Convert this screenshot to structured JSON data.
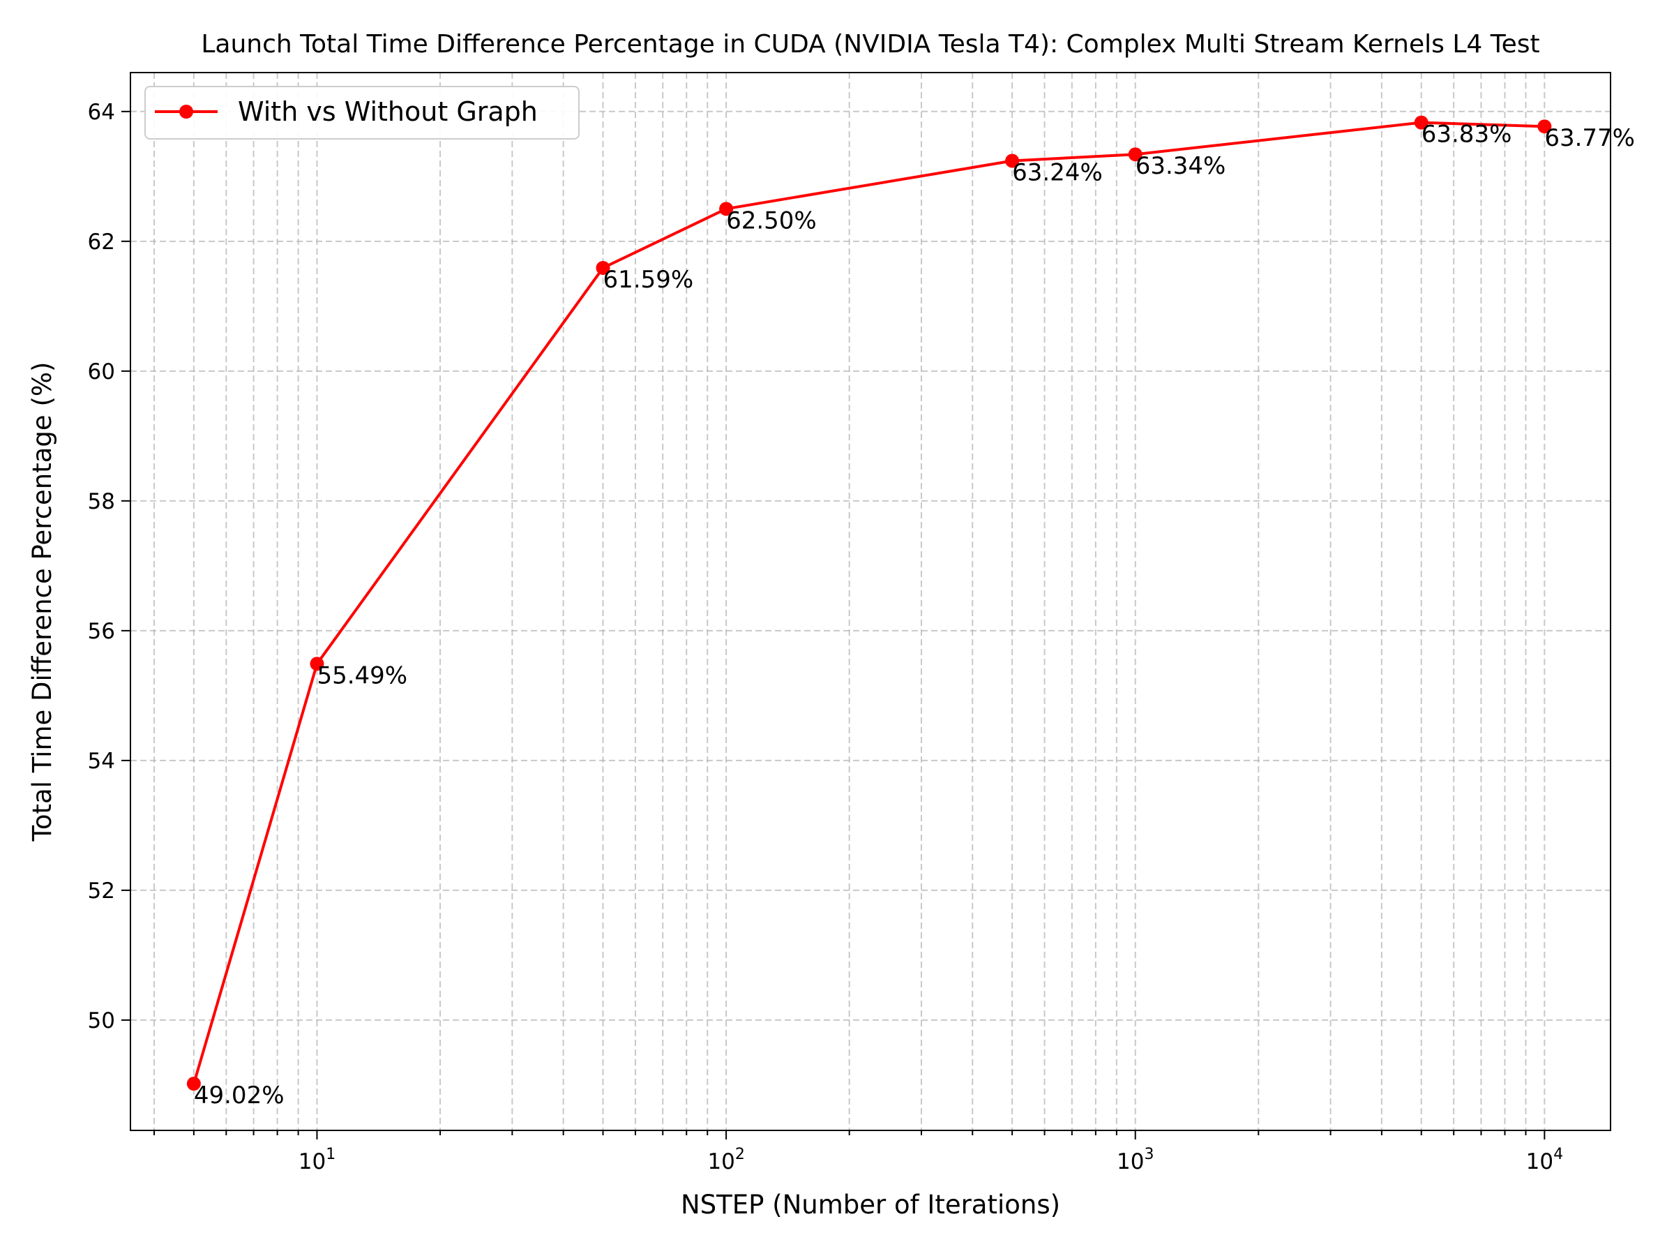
{
  "chart_data": {
    "type": "line",
    "title": "Launch Total Time Difference Percentage in CUDA (NVIDIA Tesla T4): Complex Multi Stream Kernels L4 Test",
    "xlabel": "NSTEP (Number of Iterations)",
    "ylabel": "Total Time Difference Percentage (%)",
    "x_scale": "log",
    "xlim": [
      3.5,
      14500
    ],
    "ylim": [
      48.3,
      64.6
    ],
    "grid": true,
    "legend_position": "top-left",
    "x_ticks": [
      {
        "value": 10,
        "base": "10",
        "exp": "1"
      },
      {
        "value": 100,
        "base": "10",
        "exp": "2"
      },
      {
        "value": 1000,
        "base": "10",
        "exp": "3"
      },
      {
        "value": 10000,
        "base": "10",
        "exp": "4"
      }
    ],
    "y_ticks": [
      {
        "value": 50,
        "label": "50"
      },
      {
        "value": 52,
        "label": "52"
      },
      {
        "value": 54,
        "label": "54"
      },
      {
        "value": 56,
        "label": "56"
      },
      {
        "value": 58,
        "label": "58"
      },
      {
        "value": 60,
        "label": "60"
      },
      {
        "value": 62,
        "label": "62"
      },
      {
        "value": 64,
        "label": "64"
      }
    ],
    "series": [
      {
        "name": "With vs Without Graph",
        "color": "#ff0000",
        "x": [
          5,
          10,
          50,
          100,
          500,
          1000,
          5000,
          10000
        ],
        "y": [
          49.02,
          55.49,
          61.59,
          62.5,
          63.24,
          63.34,
          63.83,
          63.77
        ],
        "labels": [
          "49.02%",
          "55.49%",
          "61.59%",
          "62.50%",
          "63.24%",
          "63.34%",
          "63.83%",
          "63.77%"
        ]
      }
    ]
  }
}
